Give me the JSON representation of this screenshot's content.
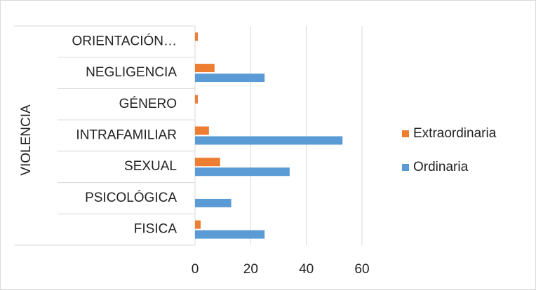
{
  "chart_data": {
    "type": "hbar",
    "axis_group_label": "VIOLENCIA",
    "categories": [
      "FISICA",
      "PSICOLÓGICA",
      "SEXUAL",
      "INTRAFAMILIAR",
      "GÉNERO",
      "NEGLIGENCIA",
      "ORIENTACIÓN…"
    ],
    "series": [
      {
        "name": "Extraordinaria",
        "color": "#ed7d31",
        "values": [
          2,
          0,
          9,
          5,
          1,
          7,
          1
        ]
      },
      {
        "name": "Ordinaria",
        "color": "#5b9bd5",
        "values": [
          25,
          13,
          34,
          53,
          0,
          25,
          0
        ]
      }
    ],
    "xlim": [
      0,
      60
    ],
    "xticks": [
      0,
      20,
      40,
      60
    ],
    "grid": true,
    "legend": "right"
  }
}
